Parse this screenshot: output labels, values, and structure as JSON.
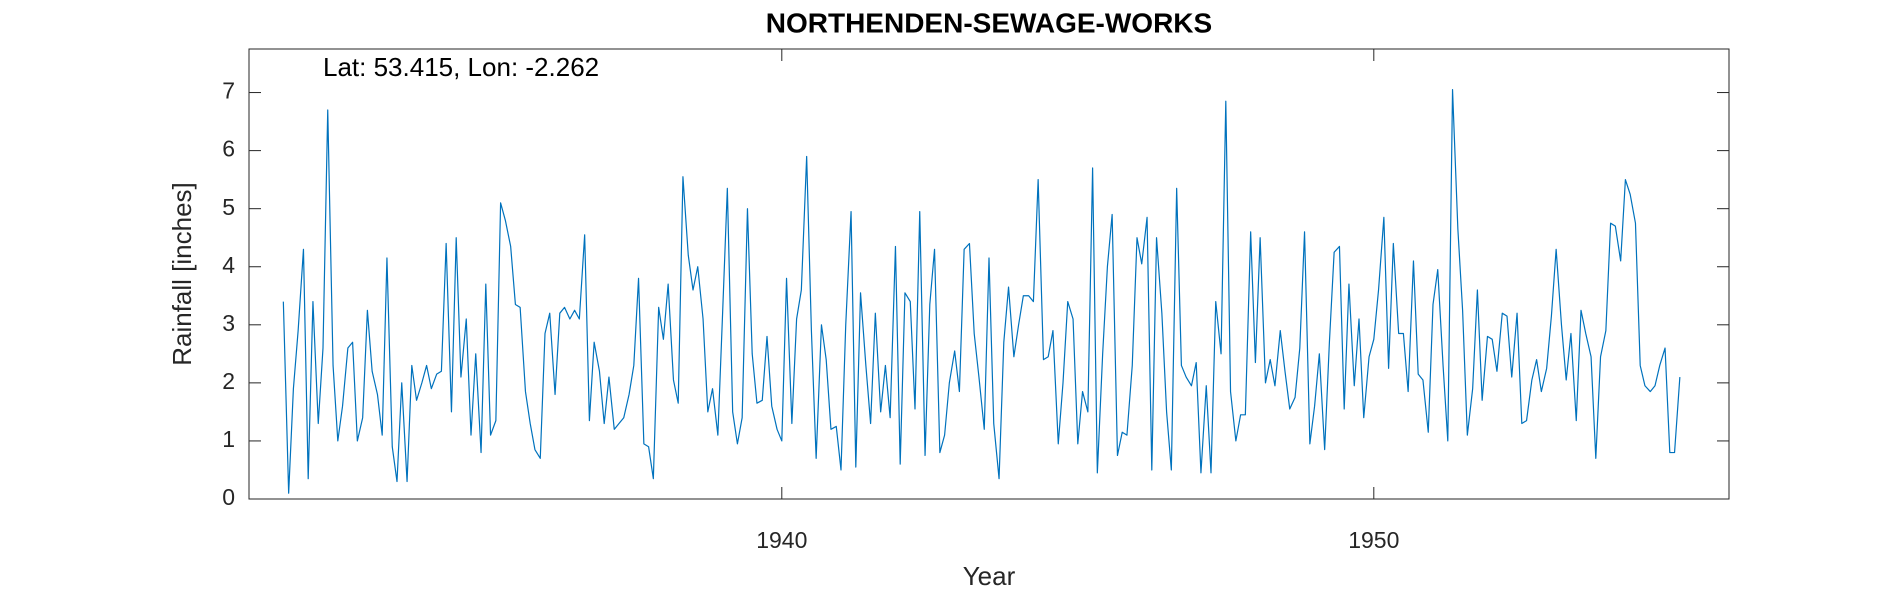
{
  "chart_data": {
    "type": "line",
    "title": "NORTHENDEN-SEWAGE-WORKS",
    "annotation": "Lat: 53.415, Lon: -2.262",
    "xlabel": "Year",
    "ylabel": "Rainfall [inches]",
    "color": "#0072bd",
    "xlim": [
      1931,
      1956
    ],
    "xticks": [
      1940,
      1950
    ],
    "ylim": [
      0,
      7.75
    ],
    "yticks": [
      0,
      1,
      2,
      3,
      4,
      5,
      6,
      7
    ],
    "x": [
      1931.58,
      1931.67,
      1931.75,
      1931.83,
      1931.92,
      1932,
      1932.08,
      1932.17,
      1932.25,
      1932.33,
      1932.42,
      1932.5,
      1932.58,
      1932.67,
      1932.75,
      1932.83,
      1932.92,
      1933,
      1933.08,
      1933.17,
      1933.25,
      1933.33,
      1933.42,
      1933.5,
      1933.58,
      1933.67,
      1933.75,
      1933.83,
      1933.92,
      1934,
      1934.08,
      1934.17,
      1934.25,
      1934.33,
      1934.42,
      1934.5,
      1934.58,
      1934.67,
      1934.75,
      1934.83,
      1934.92,
      1935,
      1935.08,
      1935.17,
      1935.25,
      1935.33,
      1935.42,
      1935.5,
      1935.58,
      1935.67,
      1935.75,
      1935.83,
      1935.92,
      1936,
      1936.08,
      1936.17,
      1936.25,
      1936.33,
      1936.42,
      1936.5,
      1936.58,
      1936.67,
      1936.75,
      1936.83,
      1936.92,
      1937,
      1937.08,
      1937.17,
      1937.25,
      1937.33,
      1937.42,
      1937.5,
      1937.58,
      1937.67,
      1937.75,
      1937.83,
      1937.92,
      1938,
      1938.08,
      1938.17,
      1938.25,
      1938.33,
      1938.42,
      1938.5,
      1938.58,
      1938.67,
      1938.75,
      1938.83,
      1938.92,
      1939,
      1939.08,
      1939.17,
      1939.25,
      1939.33,
      1939.42,
      1939.5,
      1939.58,
      1939.67,
      1939.75,
      1939.83,
      1939.92,
      1940,
      1940.08,
      1940.17,
      1940.25,
      1940.33,
      1940.42,
      1940.5,
      1940.58,
      1940.67,
      1940.75,
      1940.83,
      1940.92,
      1941,
      1941.08,
      1941.17,
      1941.25,
      1941.33,
      1941.42,
      1941.5,
      1941.58,
      1941.67,
      1941.75,
      1941.83,
      1941.92,
      1942,
      1942.08,
      1942.17,
      1942.25,
      1942.33,
      1942.42,
      1942.5,
      1942.58,
      1942.67,
      1942.75,
      1942.83,
      1942.92,
      1943,
      1943.08,
      1943.17,
      1943.25,
      1943.33,
      1943.42,
      1943.5,
      1943.58,
      1943.67,
      1943.75,
      1943.83,
      1943.92,
      1944,
      1944.08,
      1944.17,
      1944.25,
      1944.33,
      1944.42,
      1944.5,
      1944.58,
      1944.67,
      1944.75,
      1944.83,
      1944.92,
      1945,
      1945.08,
      1945.17,
      1945.25,
      1945.33,
      1945.42,
      1945.5,
      1945.58,
      1945.67,
      1945.75,
      1945.83,
      1945.92,
      1946,
      1946.08,
      1946.17,
      1946.25,
      1946.33,
      1946.42,
      1946.5,
      1946.58,
      1946.67,
      1946.75,
      1946.83,
      1946.92,
      1947,
      1947.08,
      1947.17,
      1947.25,
      1947.33,
      1947.42,
      1947.5,
      1947.58,
      1947.67,
      1947.75,
      1947.83,
      1947.92,
      1948,
      1948.08,
      1948.17,
      1948.25,
      1948.33,
      1948.42,
      1948.5,
      1948.58,
      1948.67,
      1948.75,
      1948.83,
      1948.92,
      1949,
      1949.08,
      1949.17,
      1949.25,
      1949.33,
      1949.42,
      1949.5,
      1949.58,
      1949.67,
      1949.75,
      1949.83,
      1949.92,
      1950,
      1950.08,
      1950.17,
      1950.25,
      1950.33,
      1950.42,
      1950.5,
      1950.58,
      1950.67,
      1950.75,
      1950.83,
      1950.92,
      1951,
      1951.08,
      1951.17,
      1951.25,
      1951.33,
      1951.42,
      1951.5,
      1951.58,
      1951.67,
      1951.75,
      1951.83,
      1951.92,
      1952,
      1952.08,
      1952.17,
      1952.25,
      1952.33,
      1952.42,
      1952.5,
      1952.58,
      1952.67,
      1952.75,
      1952.83,
      1952.92,
      1953,
      1953.08,
      1953.17,
      1953.25,
      1953.33,
      1953.42,
      1953.5,
      1953.58,
      1953.67,
      1953.75,
      1953.83,
      1953.92,
      1954,
      1954.08,
      1954.17,
      1954.25,
      1954.33,
      1954.42,
      1954.5,
      1954.58,
      1954.67,
      1954.75,
      1954.83,
      1954.92,
      1955,
      1955.08,
      1955.17
    ],
    "values": [
      3.4,
      0.1,
      1.9,
      2.9,
      4.3,
      0.35,
      3.4,
      1.3,
      2.6,
      6.7,
      2.3,
      1.0,
      1.6,
      2.6,
      2.7,
      1.0,
      1.4,
      3.25,
      2.2,
      1.8,
      1.1,
      4.15,
      0.9,
      0.3,
      2.0,
      0.3,
      2.3,
      1.7,
      2.0,
      2.3,
      1.9,
      2.15,
      2.2,
      4.4,
      1.5,
      4.5,
      2.1,
      3.1,
      1.1,
      2.5,
      0.8,
      3.7,
      1.1,
      1.35,
      5.1,
      4.8,
      4.35,
      3.35,
      3.3,
      1.85,
      1.3,
      0.85,
      0.7,
      2.85,
      3.2,
      1.8,
      3.2,
      3.3,
      3.1,
      3.25,
      3.1,
      4.55,
      1.35,
      2.7,
      2.2,
      1.3,
      2.1,
      1.2,
      1.3,
      1.4,
      1.8,
      2.3,
      3.8,
      0.95,
      0.9,
      0.35,
      3.3,
      2.75,
      3.7,
      2.05,
      1.65,
      5.55,
      4.2,
      3.6,
      4.0,
      3.1,
      1.5,
      1.9,
      1.1,
      3.2,
      5.35,
      1.5,
      0.95,
      1.4,
      5.0,
      2.5,
      1.65,
      1.7,
      2.8,
      1.6,
      1.2,
      1.0,
      3.8,
      1.3,
      3.1,
      3.6,
      5.9,
      2.9,
      0.7,
      3.0,
      2.4,
      1.2,
      1.25,
      0.5,
      3.0,
      4.95,
      0.55,
      3.55,
      2.3,
      1.3,
      3.2,
      1.5,
      2.3,
      1.4,
      4.35,
      0.6,
      3.55,
      3.4,
      1.55,
      4.95,
      0.75,
      3.35,
      4.3,
      0.8,
      1.1,
      2.0,
      2.55,
      1.85,
      4.3,
      4.4,
      2.85,
      2.1,
      1.2,
      4.15,
      1.3,
      0.35,
      2.7,
      3.65,
      2.45,
      3.0,
      3.5,
      3.5,
      3.4,
      5.5,
      2.4,
      2.45,
      2.9,
      0.95,
      2.0,
      3.4,
      3.1,
      0.95,
      1.85,
      1.5,
      5.7,
      0.45,
      2.5,
      4.0,
      4.9,
      0.75,
      1.15,
      1.1,
      2.3,
      4.5,
      4.05,
      4.85,
      0.5,
      4.5,
      3.2,
      1.5,
      0.5,
      5.35,
      2.3,
      2.1,
      1.95,
      2.35,
      0.45,
      1.95,
      0.45,
      3.4,
      2.5,
      6.85,
      1.85,
      1.0,
      1.45,
      1.45,
      4.6,
      2.35,
      4.5,
      2.0,
      2.4,
      1.95,
      2.9,
      2.2,
      1.55,
      1.75,
      2.6,
      4.6,
      0.95,
      1.6,
      2.5,
      0.85,
      2.7,
      4.25,
      4.35,
      1.55,
      3.7,
      1.95,
      3.1,
      1.4,
      2.45,
      2.75,
      3.6,
      4.85,
      2.25,
      4.4,
      2.85,
      2.85,
      1.85,
      4.1,
      2.15,
      2.05,
      1.15,
      3.35,
      3.95,
      2.3,
      1.0,
      7.05,
      4.65,
      3.25,
      1.1,
      1.9,
      3.6,
      1.7,
      2.8,
      2.75,
      2.2,
      3.2,
      3.15,
      2.1,
      3.2,
      1.3,
      1.35,
      2.05,
      2.4,
      1.85,
      2.25,
      3.15,
      4.3,
      3.0,
      2.05,
      2.85,
      1.35,
      3.25,
      2.85,
      2.45,
      0.7,
      2.45,
      2.9,
      4.75,
      4.7,
      4.1,
      5.5,
      5.25,
      4.75,
      2.3,
      1.95,
      1.85,
      1.95,
      2.3,
      2.6,
      0.8,
      0.8,
      2.1
    ]
  }
}
